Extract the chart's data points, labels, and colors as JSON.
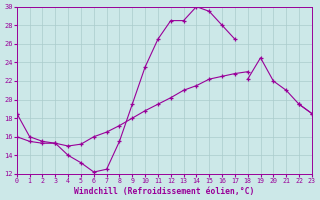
{
  "xlabel": "Windchill (Refroidissement éolien,°C)",
  "bg_color": "#cce8e8",
  "line_color": "#990099",
  "grid_color": "#aacccc",
  "hours": [
    0,
    1,
    2,
    3,
    4,
    5,
    6,
    7,
    8,
    9,
    10,
    11,
    12,
    13,
    14,
    15,
    16,
    17,
    18,
    19,
    20,
    21,
    22,
    23
  ],
  "curve1": [
    18.5,
    16.0,
    15.5,
    15.3,
    14.0,
    13.2,
    12.2,
    12.5,
    15.5,
    19.5,
    23.5,
    26.5,
    28.5,
    28.5,
    30.0,
    29.5,
    28.0,
    26.5,
    null,
    null,
    null,
    null,
    null,
    null
  ],
  "curve2": [
    18.5,
    null,
    null,
    null,
    null,
    null,
    null,
    null,
    null,
    null,
    null,
    null,
    null,
    null,
    null,
    null,
    null,
    null,
    null,
    null,
    null,
    null,
    19.5,
    18.5
  ],
  "curve3": [
    16.0,
    15.5,
    15.3,
    15.3,
    15.0,
    15.2,
    16.0,
    16.5,
    17.2,
    18.0,
    18.8,
    19.5,
    20.2,
    21.0,
    21.5,
    22.2,
    22.5,
    22.8,
    23.0,
    null,
    null,
    null,
    null,
    null
  ],
  "curve4": [
    null,
    null,
    null,
    null,
    null,
    null,
    null,
    null,
    null,
    null,
    null,
    null,
    null,
    null,
    null,
    null,
    null,
    null,
    22.2,
    24.5,
    22.0,
    21.0,
    19.5,
    18.5
  ],
  "ylim": [
    12,
    30
  ],
  "yticks": [
    12,
    14,
    16,
    18,
    20,
    22,
    24,
    26,
    28,
    30
  ],
  "xlim": [
    0,
    23
  ],
  "figw": 3.2,
  "figh": 2.0,
  "dpi": 100
}
